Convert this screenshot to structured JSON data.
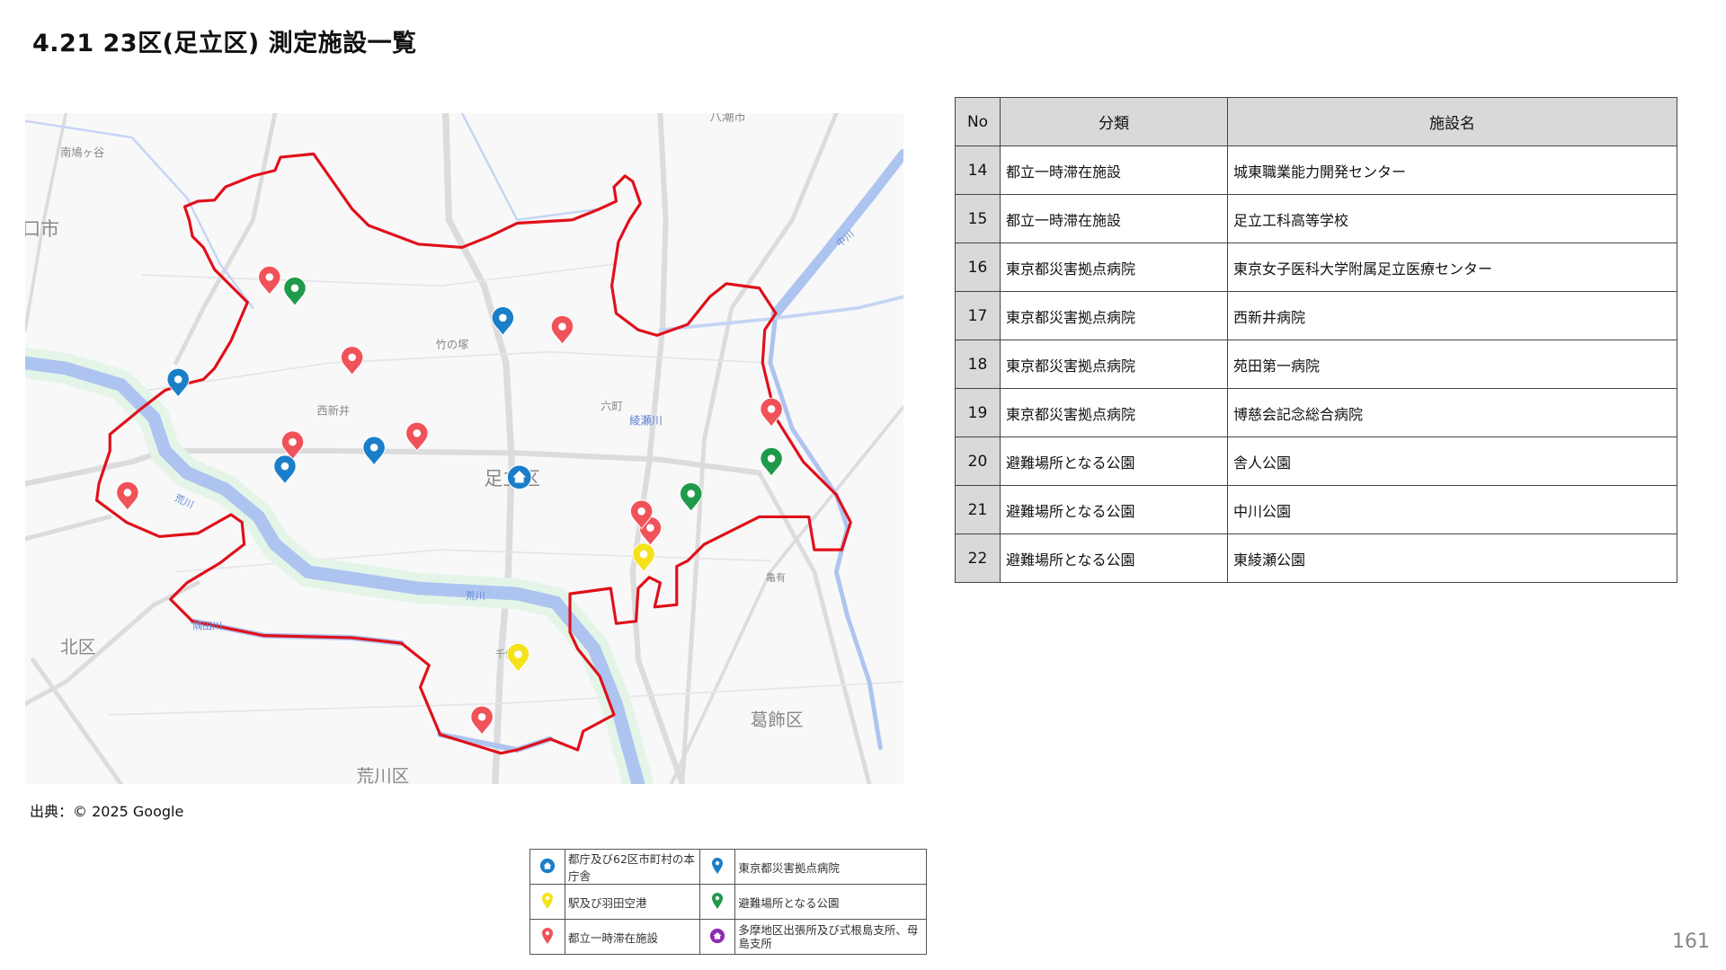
{
  "title": "4.21 23区(足立区) 測定施設一覧",
  "source": "出典：© 2025 Google",
  "page_number": "161",
  "map": {
    "labels": {
      "minami_hatogaya": "南鳩ヶ谷",
      "kawaguchi": "口市",
      "yashio": "八潮市",
      "takenotsuka": "竹の塚",
      "nishiarai": "西新井",
      "rokucho": "六町",
      "ayasegawa": "綾瀬川",
      "adachi": "足立区",
      "arakawa_river": "荒川",
      "arakawa_river2": "荒川",
      "sumidagawa": "隅田川",
      "kita": "北区",
      "senju": "千住",
      "kameari": "亀有",
      "katsushika": "葛飾区",
      "arakawa_ku": "荒川区",
      "nakagawa": "中川"
    },
    "boundary_color": "#e0101a"
  },
  "marker_colors": {
    "office": "#1a7fc8",
    "hospital": "#1a7fc8",
    "station": "#f5e21a",
    "park": "#1f9a4a",
    "shelter": "#f0525a",
    "branch": "#8e2bb0"
  },
  "table": {
    "headers": [
      "No",
      "分類",
      "施設名"
    ],
    "rows": [
      {
        "no": "14",
        "category": "都立一時滞在施設",
        "name": "城東職業能力開発センター"
      },
      {
        "no": "15",
        "category": "都立一時滞在施設",
        "name": "足立工科高等学校"
      },
      {
        "no": "16",
        "category": "東京都災害拠点病院",
        "name": "東京女子医科大学附属足立医療センター"
      },
      {
        "no": "17",
        "category": "東京都災害拠点病院",
        "name": "西新井病院"
      },
      {
        "no": "18",
        "category": "東京都災害拠点病院",
        "name": "苑田第一病院"
      },
      {
        "no": "19",
        "category": "東京都災害拠点病院",
        "name": "博慈会記念総合病院"
      },
      {
        "no": "20",
        "category": "避難場所となる公園",
        "name": "舎人公園"
      },
      {
        "no": "21",
        "category": "避難場所となる公園",
        "name": "中川公園"
      },
      {
        "no": "22",
        "category": "避難場所となる公園",
        "name": "東綾瀬公園"
      }
    ]
  },
  "legend": [
    {
      "icon": "home-pin-blue",
      "label": "都庁及び62区市町村の本庁舎"
    },
    {
      "icon": "pin-blue",
      "label": "東京都災害拠点病院"
    },
    {
      "icon": "pin-yellow",
      "label": "駅及び羽田空港"
    },
    {
      "icon": "pin-green",
      "label": "避難場所となる公園"
    },
    {
      "icon": "pin-red",
      "label": "都立一時滞在施設"
    },
    {
      "icon": "home-pin-purple",
      "label": "多摩地区出張所及び式根島支所、母島支所"
    }
  ]
}
